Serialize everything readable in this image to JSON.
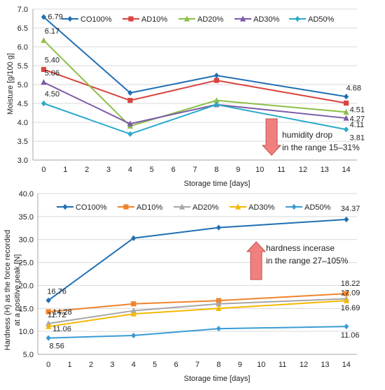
{
  "chart_data": [
    {
      "type": "line",
      "x": [
        0,
        4,
        8,
        14
      ],
      "ylabel": "Moisture [g/100 g]",
      "xlabel": "Storage time [days]",
      "ylim": [
        3.0,
        7.0
      ],
      "xlim": [
        0,
        14
      ],
      "yticks": [
        "3.0",
        "3.5",
        "4.0",
        "4.5",
        "5.0",
        "5.5",
        "6.0",
        "6.5",
        "7.0"
      ],
      "xticks": [
        "0",
        "1",
        "2",
        "3",
        "4",
        "5",
        "6",
        "7",
        "8",
        "9",
        "10",
        "11",
        "12",
        "13",
        "14"
      ],
      "grid": true,
      "legend_placement": "top",
      "series": [
        {
          "name": "CO100%",
          "values": [
            6.79,
            4.78,
            5.24,
            4.68
          ],
          "color": "#1f6fb4",
          "marker": "diamond"
        },
        {
          "name": "AD10%",
          "values": [
            5.4,
            4.58,
            5.11,
            4.51
          ],
          "color": "#d9433f",
          "marker": "square"
        },
        {
          "name": "AD20%",
          "values": [
            6.17,
            3.9,
            4.58,
            4.27
          ],
          "color": "#8dbf45",
          "marker": "triangle"
        },
        {
          "name": "AD30%",
          "values": [
            5.06,
            3.96,
            4.47,
            4.11
          ],
          "color": "#7b5aa6",
          "marker": "triangle"
        },
        {
          "name": "AD50%",
          "values": [
            4.5,
            3.69,
            4.47,
            3.81
          ],
          "color": "#2aa9c9",
          "marker": "diamond"
        }
      ],
      "data_labels": [
        {
          "x": 0,
          "y": 6.79,
          "text": "6.79"
        },
        {
          "x": 0,
          "y": 6.17,
          "text": "6.17"
        },
        {
          "x": 0,
          "y": 5.4,
          "text": "5.40"
        },
        {
          "x": 0,
          "y": 5.06,
          "text": "5.06"
        },
        {
          "x": 0,
          "y": 4.5,
          "text": "4.50"
        },
        {
          "x": 14,
          "y": 4.68,
          "text": "4.68"
        },
        {
          "x": 14,
          "y": 4.51,
          "text": "4.51"
        },
        {
          "x": 14,
          "y": 4.27,
          "text": "4.27"
        },
        {
          "x": 14,
          "y": 4.11,
          "text": "4.11"
        },
        {
          "x": 14,
          "y": 3.81,
          "text": "3.81"
        }
      ],
      "annotation": {
        "line1": "humidity drop",
        "line2": "in the range 15–31%",
        "arrow": "down",
        "color": "#f08080"
      }
    },
    {
      "type": "line",
      "x": [
        0,
        4,
        8,
        14
      ],
      "ylabel": "Hardness (H) as the force recorded at a positive peak [N]",
      "ylabel_lines": [
        "Hardness (H) as the force recorded",
        "at a positive peak [N]"
      ],
      "xlabel": "Storage time [days]",
      "ylim": [
        5.0,
        40.0
      ],
      "xlim": [
        0,
        14
      ],
      "yticks": [
        "5.0",
        "10.0",
        "15.0",
        "20.0",
        "25.0",
        "30.0",
        "35.0",
        "40.0"
      ],
      "xticks": [
        "0",
        "1",
        "2",
        "3",
        "4",
        "5",
        "6",
        "7",
        "8",
        "9",
        "10",
        "11",
        "12",
        "13",
        "14"
      ],
      "grid": true,
      "legend_placement": "top",
      "series": [
        {
          "name": "CO100%",
          "values": [
            16.76,
            30.3,
            32.6,
            34.37
          ],
          "color": "#1f6fb4",
          "marker": "diamond"
        },
        {
          "name": "AD10%",
          "values": [
            14.28,
            16.0,
            16.7,
            18.22
          ],
          "color": "#f0832a",
          "marker": "square"
        },
        {
          "name": "AD20%",
          "values": [
            11.72,
            14.5,
            16.0,
            17.09
          ],
          "color": "#a6a6a6",
          "marker": "triangle"
        },
        {
          "name": "AD30%",
          "values": [
            11.06,
            13.8,
            15.0,
            16.69
          ],
          "color": "#f5b800",
          "marker": "triangle"
        },
        {
          "name": "AD50%",
          "values": [
            8.56,
            9.1,
            10.6,
            11.06
          ],
          "color": "#3b9bd6",
          "marker": "diamond"
        }
      ],
      "data_labels": [
        {
          "x": 0,
          "y": 16.76,
          "text": "16.76"
        },
        {
          "x": 0,
          "y": 14.28,
          "text": "14.28"
        },
        {
          "x": 0,
          "y": 11.72,
          "text": "11.72"
        },
        {
          "x": 0,
          "y": 11.06,
          "text": "11.06"
        },
        {
          "x": 0,
          "y": 8.56,
          "text": "8.56"
        },
        {
          "x": 14,
          "y": 34.37,
          "text": "34.37"
        },
        {
          "x": 14,
          "y": 18.22,
          "text": "18.22"
        },
        {
          "x": 14,
          "y": 17.09,
          "text": "17.09"
        },
        {
          "x": 14,
          "y": 16.69,
          "text": "16.69"
        },
        {
          "x": 14,
          "y": 11.06,
          "text": "11.06"
        }
      ],
      "annotation": {
        "line1": "hardness incerase",
        "line2": "in the range 27–105%",
        "arrow": "up",
        "color": "#f08080"
      }
    }
  ]
}
